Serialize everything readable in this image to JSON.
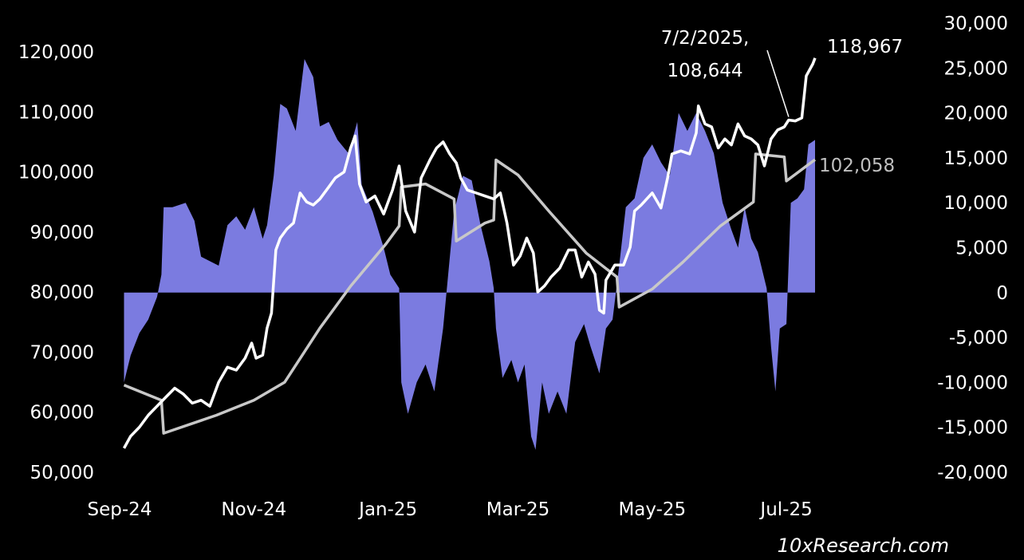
{
  "chart_data": {
    "type": "line",
    "title": "",
    "xlabel": "",
    "ylabel": "",
    "y2label": "",
    "x_ticks": [
      "Sep-24",
      "Nov-24",
      "Jan-25",
      "Mar-25",
      "May-25",
      "Jul-25"
    ],
    "x_range": [
      "2024-09-01",
      "2025-07-14"
    ],
    "y_left": {
      "ticks": [
        "120,000",
        "110,000",
        "100,000",
        "90,000",
        "80,000",
        "70,000",
        "60,000",
        "50,000"
      ],
      "range": [
        50000,
        120000
      ]
    },
    "y_right": {
      "ticks": [
        "30,000",
        "25,000",
        "20,000",
        "15,000",
        "10,000",
        "5,000",
        "0",
        "-5,000",
        "-10,000",
        "-15,000",
        "-20,000"
      ],
      "range": [
        -20000,
        30000
      ]
    },
    "colors": {
      "difference": "#7b7be0",
      "price": "#ffffff",
      "moving_average": "#c8c8c8",
      "background": "#000000"
    },
    "series": [
      {
        "axis": "left",
        "color": "#ffffff",
        "points": [
          [
            "2024-09-03",
            54000
          ],
          [
            "2024-09-06",
            56000
          ],
          [
            "2024-09-10",
            57500
          ],
          [
            "2024-09-14",
            59500
          ],
          [
            "2024-09-18",
            61000
          ],
          [
            "2024-09-22",
            62500
          ],
          [
            "2024-09-26",
            64000
          ],
          [
            "2024-09-30",
            63000
          ],
          [
            "2024-10-04",
            61500
          ],
          [
            "2024-10-08",
            62000
          ],
          [
            "2024-10-12",
            61000
          ],
          [
            "2024-10-16",
            65000
          ],
          [
            "2024-10-20",
            67500
          ],
          [
            "2024-10-24",
            67000
          ],
          [
            "2024-10-28",
            69000
          ],
          [
            "2024-10-31",
            71500
          ],
          [
            "2024-11-02",
            69000
          ],
          [
            "2024-11-05",
            69500
          ],
          [
            "2024-11-07",
            74000
          ],
          [
            "2024-11-09",
            76500
          ],
          [
            "2024-11-11",
            87000
          ],
          [
            "2024-11-13",
            89000
          ],
          [
            "2024-11-16",
            90500
          ],
          [
            "2024-11-19",
            91500
          ],
          [
            "2024-11-22",
            96500
          ],
          [
            "2024-11-25",
            95000
          ],
          [
            "2024-11-28",
            94500
          ],
          [
            "2024-12-01",
            95500
          ],
          [
            "2024-12-05",
            97500
          ],
          [
            "2024-12-08",
            99000
          ],
          [
            "2024-12-12",
            100000
          ],
          [
            "2024-12-15",
            104000
          ],
          [
            "2024-12-17",
            106000
          ],
          [
            "2024-12-19",
            98000
          ],
          [
            "2024-12-22",
            95000
          ],
          [
            "2024-12-26",
            96000
          ],
          [
            "2024-12-30",
            93000
          ],
          [
            "2025-01-03",
            97000
          ],
          [
            "2025-01-06",
            101000
          ],
          [
            "2025-01-09",
            93500
          ],
          [
            "2025-01-13",
            90000
          ],
          [
            "2025-01-16",
            99000
          ],
          [
            "2025-01-20",
            102000
          ],
          [
            "2025-01-23",
            104000
          ],
          [
            "2025-01-26",
            105000
          ],
          [
            "2025-01-29",
            103000
          ],
          [
            "2025-02-01",
            101500
          ],
          [
            "2025-02-03",
            99000
          ],
          [
            "2025-02-06",
            97000
          ],
          [
            "2025-02-10",
            96500
          ],
          [
            "2025-02-14",
            96000
          ],
          [
            "2025-02-18",
            95500
          ],
          [
            "2025-02-21",
            96500
          ],
          [
            "2025-02-24",
            91500
          ],
          [
            "2025-02-27",
            84500
          ],
          [
            "2025-03-02",
            86000
          ],
          [
            "2025-03-05",
            89000
          ],
          [
            "2025-03-08",
            86500
          ],
          [
            "2025-03-10",
            80000
          ],
          [
            "2025-03-13",
            81000
          ],
          [
            "2025-03-16",
            82500
          ],
          [
            "2025-03-20",
            84000
          ],
          [
            "2025-03-24",
            87000
          ],
          [
            "2025-03-27",
            87000
          ],
          [
            "2025-03-30",
            82500
          ],
          [
            "2025-04-02",
            85000
          ],
          [
            "2025-04-05",
            83000
          ],
          [
            "2025-04-07",
            77000
          ],
          [
            "2025-04-09",
            76500
          ],
          [
            "2025-04-10",
            82000
          ],
          [
            "2025-04-14",
            84500
          ],
          [
            "2025-04-18",
            84500
          ],
          [
            "2025-04-21",
            87500
          ],
          [
            "2025-04-23",
            93500
          ],
          [
            "2025-04-26",
            94500
          ],
          [
            "2025-05-01",
            96500
          ],
          [
            "2025-05-05",
            94000
          ],
          [
            "2025-05-08",
            99000
          ],
          [
            "2025-05-10",
            103000
          ],
          [
            "2025-05-14",
            103500
          ],
          [
            "2025-05-18",
            103000
          ],
          [
            "2025-05-21",
            106500
          ],
          [
            "2025-05-22",
            111000
          ],
          [
            "2025-05-25",
            108000
          ],
          [
            "2025-05-28",
            107500
          ],
          [
            "2025-05-31",
            104000
          ],
          [
            "2025-06-03",
            105500
          ],
          [
            "2025-06-06",
            104500
          ],
          [
            "2025-06-09",
            108000
          ],
          [
            "2025-06-12",
            106000
          ],
          [
            "2025-06-15",
            105500
          ],
          [
            "2025-06-18",
            104500
          ],
          [
            "2025-06-21",
            101000
          ],
          [
            "2025-06-24",
            105500
          ],
          [
            "2025-06-27",
            107000
          ],
          [
            "2025-06-30",
            107500
          ],
          [
            "2025-07-02",
            108644
          ],
          [
            "2025-07-05",
            108500
          ],
          [
            "2025-07-08",
            109000
          ],
          [
            "2025-07-10",
            116000
          ],
          [
            "2025-07-13",
            118000
          ],
          [
            "2025-07-14",
            118967
          ]
        ]
      },
      {
        "axis": "left",
        "color": "#c8c8c8",
        "points": [
          [
            "2024-09-03",
            64500
          ],
          [
            "2024-09-20",
            62000
          ],
          [
            "2024-09-21",
            56500
          ],
          [
            "2024-10-15",
            59500
          ],
          [
            "2024-11-01",
            62000
          ],
          [
            "2024-11-15",
            65000
          ],
          [
            "2024-12-01",
            74000
          ],
          [
            "2024-12-15",
            81000
          ],
          [
            "2024-12-31",
            88000
          ],
          [
            "2025-01-06",
            91000
          ],
          [
            "2025-01-07",
            97500
          ],
          [
            "2025-01-18",
            98000
          ],
          [
            "2025-01-31",
            95500
          ],
          [
            "2025-02-01",
            88500
          ],
          [
            "2025-02-14",
            91500
          ],
          [
            "2025-02-18",
            92000
          ],
          [
            "2025-02-19",
            102000
          ],
          [
            "2025-03-01",
            99500
          ],
          [
            "2025-03-15",
            93500
          ],
          [
            "2025-04-01",
            86500
          ],
          [
            "2025-04-15",
            82500
          ],
          [
            "2025-04-16",
            77500
          ],
          [
            "2025-05-01",
            80500
          ],
          [
            "2025-05-15",
            85000
          ],
          [
            "2025-06-01",
            91000
          ],
          [
            "2025-06-16",
            95000
          ],
          [
            "2025-06-17",
            103000
          ],
          [
            "2025-06-30",
            102500
          ],
          [
            "2025-07-01",
            98500
          ],
          [
            "2025-07-14",
            102058
          ]
        ]
      },
      {
        "axis": "right",
        "type": "area",
        "color": "#7b7be0",
        "points": [
          [
            "2024-09-03",
            -10000
          ],
          [
            "2024-09-06",
            -7000
          ],
          [
            "2024-09-10",
            -4500
          ],
          [
            "2024-09-14",
            -3000
          ],
          [
            "2024-09-18",
            -500
          ],
          [
            "2024-09-20",
            2000
          ],
          [
            "2024-09-21",
            9500
          ],
          [
            "2024-09-25",
            9500
          ],
          [
            "2024-10-01",
            10000
          ],
          [
            "2024-10-05",
            8000
          ],
          [
            "2024-10-08",
            4000
          ],
          [
            "2024-10-12",
            3500
          ],
          [
            "2024-10-16",
            3000
          ],
          [
            "2024-10-20",
            7500
          ],
          [
            "2024-10-24",
            8500
          ],
          [
            "2024-10-28",
            7000
          ],
          [
            "2024-11-01",
            9500
          ],
          [
            "2024-11-05",
            6000
          ],
          [
            "2024-11-07",
            7500
          ],
          [
            "2024-11-10",
            13000
          ],
          [
            "2024-11-13",
            21000
          ],
          [
            "2024-11-16",
            20500
          ],
          [
            "2024-11-20",
            18000
          ],
          [
            "2024-11-24",
            26000
          ],
          [
            "2024-11-28",
            24000
          ],
          [
            "2024-12-01",
            18500
          ],
          [
            "2024-12-05",
            19000
          ],
          [
            "2024-12-09",
            17000
          ],
          [
            "2024-12-14",
            15500
          ],
          [
            "2024-12-18",
            19000
          ],
          [
            "2024-12-20",
            12000
          ],
          [
            "2024-12-25",
            9000
          ],
          [
            "2024-12-30",
            5000
          ],
          [
            "2025-01-02",
            2000
          ],
          [
            "2025-01-06",
            500
          ],
          [
            "2025-01-07",
            -10000
          ],
          [
            "2025-01-10",
            -13500
          ],
          [
            "2025-01-14",
            -10000
          ],
          [
            "2025-01-18",
            -8000
          ],
          [
            "2025-01-22",
            -11000
          ],
          [
            "2025-01-26",
            -4000
          ],
          [
            "2025-01-31",
            9000
          ],
          [
            "2025-02-04",
            13000
          ],
          [
            "2025-02-08",
            12500
          ],
          [
            "2025-02-12",
            7500
          ],
          [
            "2025-02-16",
            3500
          ],
          [
            "2025-02-18",
            500
          ],
          [
            "2025-02-19",
            -4000
          ],
          [
            "2025-02-22",
            -9500
          ],
          [
            "2025-02-26",
            -7500
          ],
          [
            "2025-03-01",
            -10000
          ],
          [
            "2025-03-04",
            -8000
          ],
          [
            "2025-03-07",
            -16000
          ],
          [
            "2025-03-09",
            -17500
          ],
          [
            "2025-03-12",
            -10000
          ],
          [
            "2025-03-15",
            -13500
          ],
          [
            "2025-03-19",
            -11000
          ],
          [
            "2025-03-23",
            -13500
          ],
          [
            "2025-03-27",
            -5500
          ],
          [
            "2025-03-31",
            -3500
          ],
          [
            "2025-04-03",
            -6000
          ],
          [
            "2025-04-07",
            -9000
          ],
          [
            "2025-04-10",
            -4000
          ],
          [
            "2025-04-13",
            -3000
          ],
          [
            "2025-04-16",
            3000
          ],
          [
            "2025-04-19",
            9500
          ],
          [
            "2025-04-23",
            10500
          ],
          [
            "2025-04-27",
            15000
          ],
          [
            "2025-05-01",
            16500
          ],
          [
            "2025-05-05",
            14500
          ],
          [
            "2025-05-09",
            13000
          ],
          [
            "2025-05-13",
            20000
          ],
          [
            "2025-05-17",
            18000
          ],
          [
            "2025-05-21",
            20000
          ],
          [
            "2025-05-25",
            18000
          ],
          [
            "2025-05-29",
            15500
          ],
          [
            "2025-06-02",
            10000
          ],
          [
            "2025-06-06",
            7000
          ],
          [
            "2025-06-09",
            5000
          ],
          [
            "2025-06-12",
            9500
          ],
          [
            "2025-06-15",
            6000
          ],
          [
            "2025-06-18",
            4500
          ],
          [
            "2025-06-22",
            500
          ],
          [
            "2025-06-24",
            -6000
          ],
          [
            "2025-06-26",
            -11000
          ],
          [
            "2025-06-28",
            -4000
          ],
          [
            "2025-07-01",
            -3500
          ],
          [
            "2025-07-03",
            10000
          ],
          [
            "2025-07-06",
            10500
          ],
          [
            "2025-07-09",
            11500
          ],
          [
            "2025-07-11",
            16500
          ],
          [
            "2025-07-14",
            17000
          ]
        ]
      }
    ],
    "annotations": [
      {
        "lines": [
          "7/2/2025,",
          "108,644"
        ],
        "date": "2025-07-02",
        "value": 108644
      },
      {
        "text": "118,967",
        "date": "2025-07-14",
        "value": 118967
      },
      {
        "text": "102,058",
        "date": "2025-07-14",
        "value": 102058
      }
    ],
    "watermark": "10xResearch.com",
    "grid": false,
    "legend": "none"
  }
}
